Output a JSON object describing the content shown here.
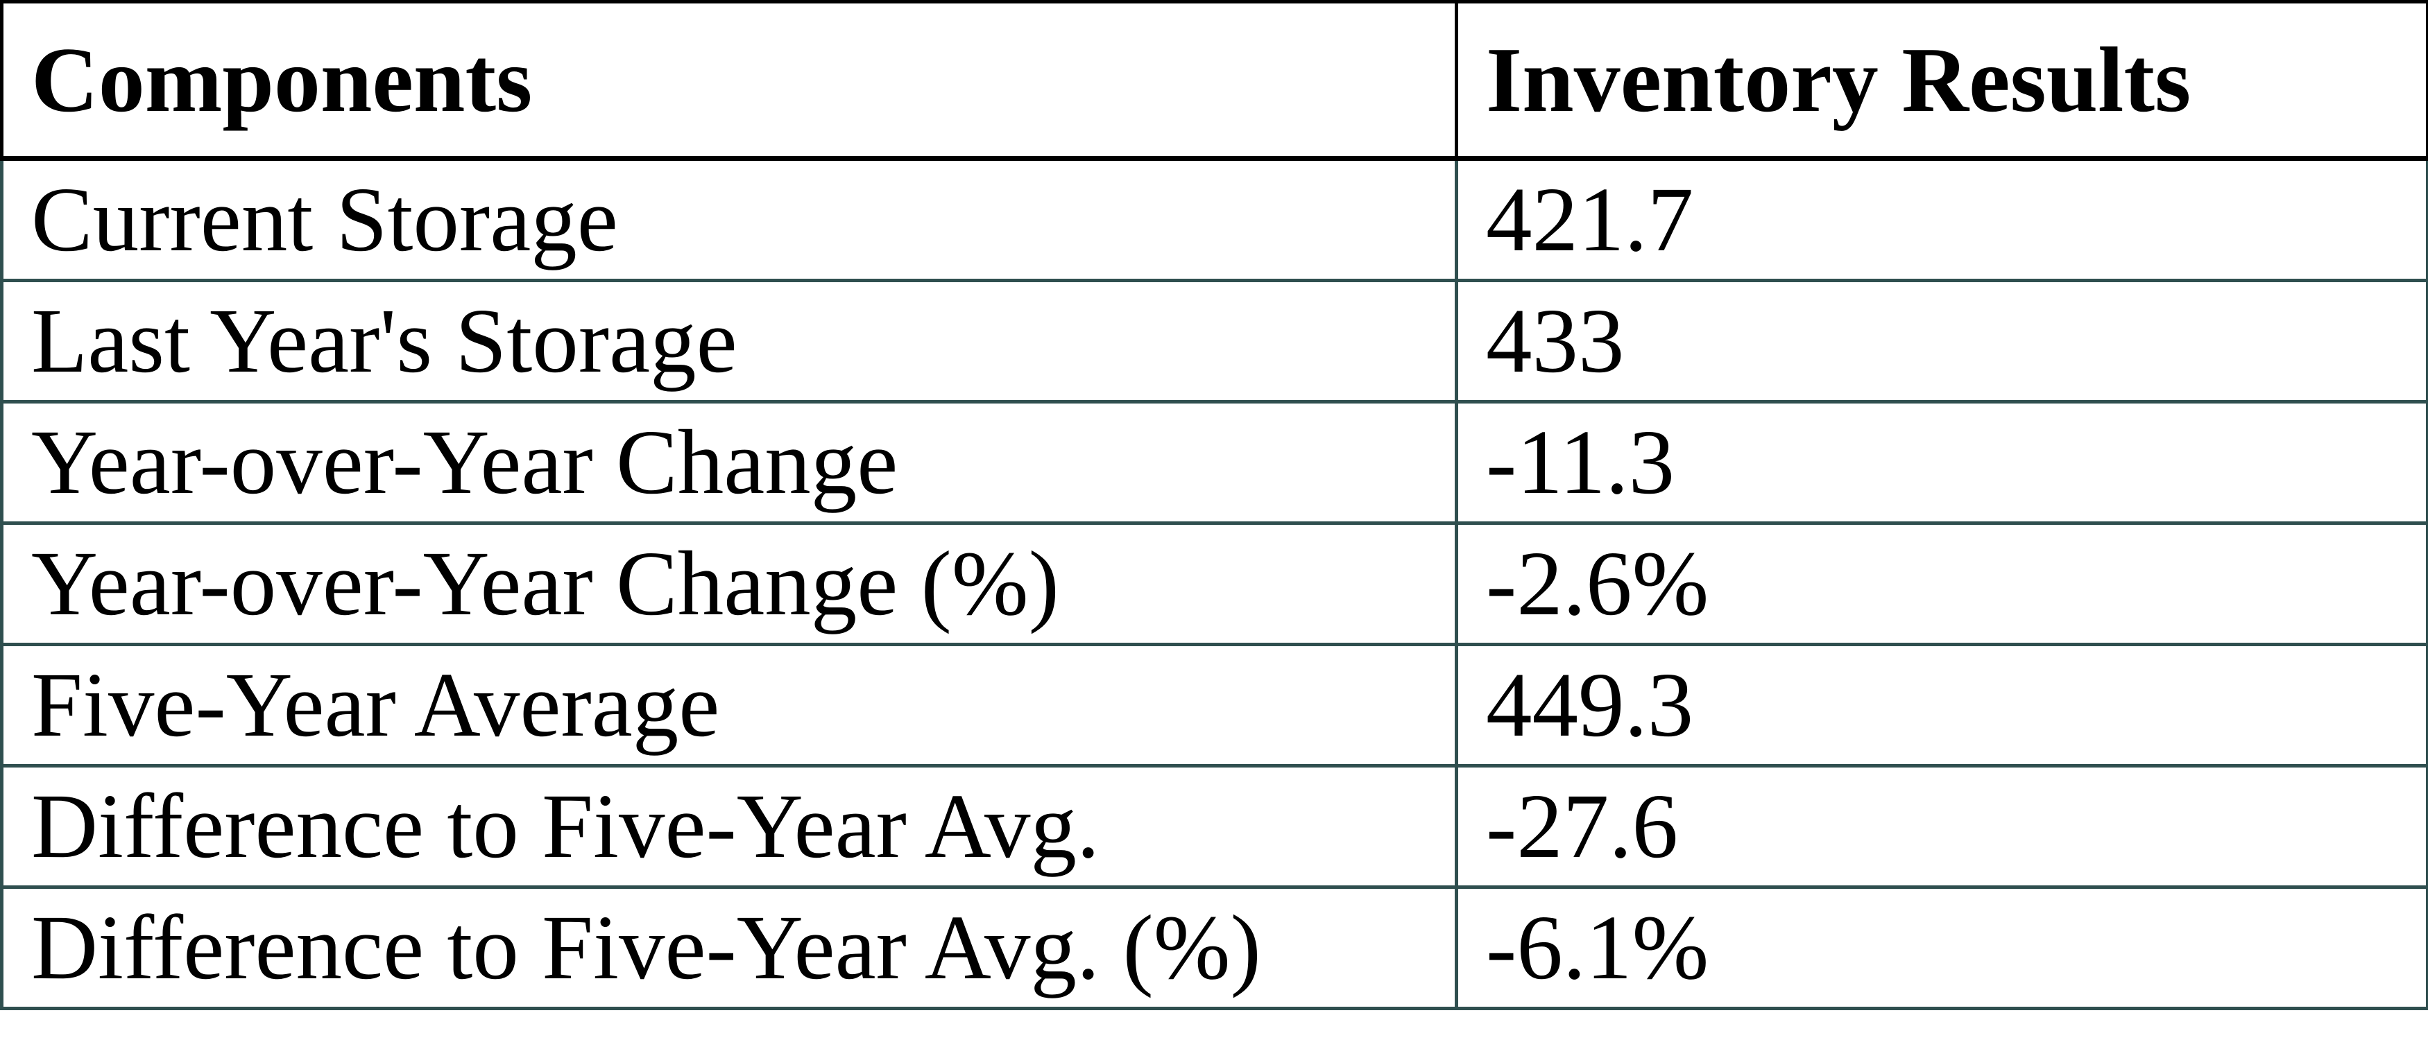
{
  "chart_data": {
    "type": "table",
    "columns": [
      "Components",
      "Inventory Results"
    ],
    "rows": [
      {
        "label": "Current Storage",
        "value": "421.7"
      },
      {
        "label": "Last Year's Storage",
        "value": "433"
      },
      {
        "label": "Year-over-Year Change",
        "value": "-11.3"
      },
      {
        "label": "Year-over-Year Change (%)",
        "value": "-2.6%"
      },
      {
        "label": "Five-Year Average",
        "value": "449.3"
      },
      {
        "label": "Difference to Five-Year Avg.",
        "value": "-27.6"
      },
      {
        "label": "Difference to Five-Year Avg. (%)",
        "value": "-6.1%"
      }
    ],
    "layout": {
      "legend": "none",
      "grid": "full table borders",
      "header_style": "bold, black borders",
      "body_style": "regular, dark-slate borders"
    }
  },
  "colors": {
    "header_border": "#000000",
    "body_border": "#2F4F4F",
    "text": "#000000",
    "background": "#FFFFFF"
  }
}
